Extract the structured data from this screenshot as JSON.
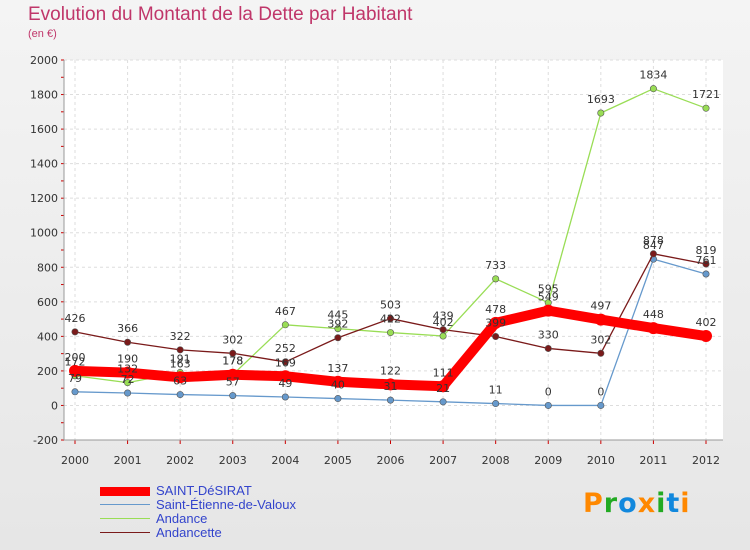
{
  "chart_data": {
    "type": "line",
    "title": "Evolution du Montant de la Dette par Habitant",
    "subtitle": "(en €)",
    "xlabel": "",
    "ylabel": "",
    "x": [
      "2000",
      "2001",
      "2002",
      "2003",
      "2004",
      "2005",
      "2006",
      "2007",
      "2008",
      "2009",
      "2010",
      "2011",
      "2012"
    ],
    "ylim": [
      -200,
      2000
    ],
    "yticks": [
      "-200",
      "0",
      "200",
      "400",
      "600",
      "800",
      "1000",
      "1200",
      "1400",
      "1600",
      "1800",
      "2000"
    ],
    "grid": true,
    "legend_position": "bottom-left",
    "series": [
      {
        "name": "SAINT-DéSIRAT",
        "color": "#ff0000",
        "values": [
          200,
          190,
          163,
          178,
          169,
          137,
          122,
          111,
          478,
          549,
          497,
          448,
          402
        ]
      },
      {
        "name": "Saint-Étienne-de-Valoux",
        "color": "#6699cc",
        "values": [
          79,
          72,
          63,
          57,
          49,
          40,
          31,
          21,
          11,
          0,
          0,
          847,
          761
        ]
      },
      {
        "name": "Andance",
        "color": "#99dd55",
        "values": [
          172,
          132,
          191,
          178,
          467,
          445,
          422,
          402,
          733,
          595,
          1693,
          1834,
          1721
        ]
      },
      {
        "name": "Andancette",
        "color": "#7a1a1a",
        "values": [
          426,
          366,
          322,
          302,
          252,
          392,
          503,
          439,
          399,
          330,
          302,
          878,
          819
        ]
      }
    ]
  },
  "logo": {
    "letters": [
      "P",
      "r",
      "o",
      "x",
      "i",
      "t",
      "i"
    ],
    "colors": [
      "#ff8800",
      "#22aa22",
      "#1188dd",
      "#ff8800",
      "#22aa22",
      "#1188dd",
      "#ff8800"
    ]
  }
}
